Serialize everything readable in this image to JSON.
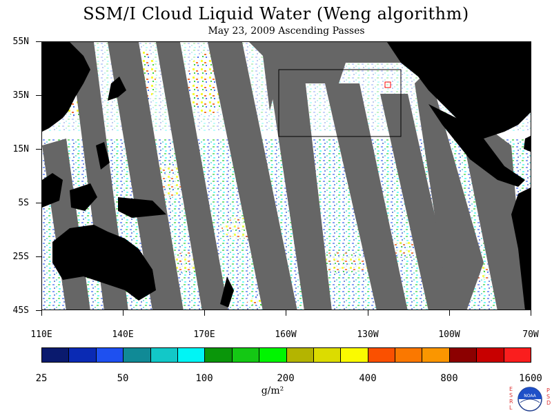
{
  "title": "SSM/I Cloud Liquid Water (Weng algorithm)",
  "subtitle": "May 23, 2009  Ascending Passes",
  "lat_labels": [
    "55N",
    "35N",
    "15N",
    "5S",
    "25S",
    "45S"
  ],
  "lon_labels": [
    "110E",
    "140E",
    "170E",
    "160W",
    "130W",
    "100W",
    "70W"
  ],
  "colorbar": {
    "unit": "g/m²",
    "labels": [
      "25",
      "50",
      "100",
      "200",
      "400",
      "800",
      "1600"
    ],
    "colors": [
      "#0a1a6e",
      "#0a2ab4",
      "#1e50f0",
      "#108a96",
      "#12c8c8",
      "#00f5f5",
      "#0a960a",
      "#14c814",
      "#00f500",
      "#b4b400",
      "#dcdc00",
      "#fafa00",
      "#fa5000",
      "#fa7800",
      "#fa9600",
      "#8c0000",
      "#c80000",
      "#fa1e1e"
    ]
  },
  "logo": {
    "left_text": "ESRL",
    "right_text": "PSD",
    "name": "NOAA"
  }
}
